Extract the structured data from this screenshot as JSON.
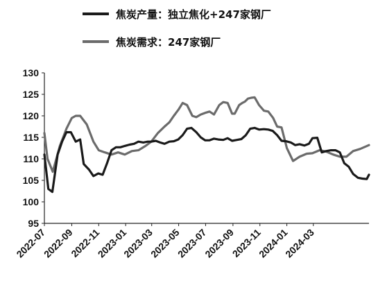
{
  "chart_data": {
    "type": "line",
    "series": [
      {
        "name": "焦炭产量：独立焦化+247家钢厂",
        "color": "#1a1a1a",
        "values": [
          111,
          103,
          102.3,
          111,
          114,
          116.2,
          116.2,
          114,
          114.5,
          108.8,
          107.5,
          106,
          106.6,
          106.3,
          109,
          112,
          112.7,
          112.7,
          113,
          113.3,
          113.5,
          114,
          113.8,
          114,
          114,
          114.2,
          113.8,
          113.5,
          114,
          114.1,
          114.5,
          115.5,
          117,
          117.2,
          116.2,
          115,
          114.3,
          114.3,
          114.7,
          114.5,
          114.4,
          114.8,
          114.2,
          114.4,
          114.6,
          115.5,
          117,
          117.2,
          116.8,
          116.9,
          116.8,
          116.5,
          115.5,
          114.2,
          114.1,
          113.8,
          113.2,
          113.4,
          113.1,
          113.5,
          114.8,
          114.9,
          111.5,
          111.8,
          112,
          112,
          111.5,
          109,
          108.2,
          106.5,
          105.6,
          105.4,
          105.3,
          106.3
        ],
        "x": [
          "2022-07-01",
          "2022-07-10",
          "2022-07-19",
          "2022-07-31",
          "2022-08-10",
          "2022-08-20",
          "2022-08-30",
          "2022-09-10",
          "2022-09-20",
          "2022-09-28",
          "2022-10-10",
          "2022-10-20",
          "2022-10-31",
          "2022-11-10",
          "2022-11-20",
          "2022-11-30",
          "2022-12-10",
          "2022-12-20",
          "2022-12-30",
          "2023-01-10",
          "2023-01-20",
          "2023-01-30",
          "2023-02-10",
          "2023-02-20",
          "2023-02-28",
          "2023-03-10",
          "2023-03-20",
          "2023-03-30",
          "2023-04-10",
          "2023-04-20",
          "2023-04-30",
          "2023-05-10",
          "2023-05-20",
          "2023-05-30",
          "2023-06-10",
          "2023-06-20",
          "2023-06-30",
          "2023-07-10",
          "2023-07-20",
          "2023-07-30",
          "2023-08-10",
          "2023-08-20",
          "2023-08-30",
          "2023-09-10",
          "2023-09-20",
          "2023-09-30",
          "2023-10-10",
          "2023-10-20",
          "2023-10-30",
          "2023-11-10",
          "2023-11-20",
          "2023-11-30",
          "2023-12-10",
          "2023-12-20",
          "2023-12-30",
          "2024-01-10",
          "2024-01-20",
          "2024-01-30",
          "2024-02-10",
          "2024-02-20",
          "2024-02-28",
          "2024-03-10",
          "2024-03-20",
          "2024-03-30",
          "2024-04-10",
          "2024-04-20",
          "2024-04-30",
          "2024-05-10",
          "2024-05-20",
          "2024-05-30",
          "2024-06-10",
          "2024-06-20",
          "2024-06-30",
          "2024-07-05"
        ]
      },
      {
        "name": "焦炭需求：247家钢厂",
        "color": "#6b6b6b",
        "values": [
          116,
          110,
          107,
          113,
          117,
          119.5,
          120,
          120,
          118,
          114,
          112,
          111.5,
          111,
          111.5,
          111,
          111.8,
          112,
          113,
          114,
          116,
          117.5,
          118.5,
          120,
          121.5,
          123,
          122.5,
          120,
          119.7,
          120.3,
          120.7,
          121,
          120.3,
          122.5,
          123.2,
          123,
          120.5,
          120.5,
          122.5,
          123,
          123.3,
          124,
          124.2,
          124.3,
          122.5,
          121.2,
          121,
          119.5,
          117.5,
          117.3,
          112.5,
          109.5,
          110.5,
          111.2,
          111.3,
          112,
          111.7,
          111,
          110.5,
          110.5,
          111.8,
          112.3,
          113.2
        ],
        "x": [
          "2022-07-01",
          "2022-07-08",
          "2022-07-20",
          "2022-08-05",
          "2022-08-20",
          "2022-09-01",
          "2022-09-10",
          "2022-09-20",
          "2022-10-05",
          "2022-10-20",
          "2022-11-01",
          "2022-11-15",
          "2022-11-30",
          "2022-12-15",
          "2022-12-30",
          "2023-01-15",
          "2023-01-30",
          "2023-02-15",
          "2023-02-28",
          "2023-03-15",
          "2023-03-30",
          "2023-04-10",
          "2023-04-20",
          "2023-05-01",
          "2023-05-10",
          "2023-05-20",
          "2023-06-01",
          "2023-06-10",
          "2023-06-20",
          "2023-06-30",
          "2023-07-10",
          "2023-07-20",
          "2023-08-01",
          "2023-08-10",
          "2023-08-20",
          "2023-08-30",
          "2023-09-05",
          "2023-09-15",
          "2023-09-22",
          "2023-09-28",
          "2023-10-05",
          "2023-10-12",
          "2023-10-20",
          "2023-10-30",
          "2023-11-10",
          "2023-11-20",
          "2023-12-01",
          "2023-12-10",
          "2023-12-20",
          "2024-01-01",
          "2024-01-15",
          "2024-01-30",
          "2024-02-15",
          "2024-02-28",
          "2024-03-15",
          "2024-03-30",
          "2024-04-15",
          "2024-04-30",
          "2024-05-15",
          "2024-05-30",
          "2024-06-15",
          "2024-07-05"
        ]
      }
    ],
    "ylim": [
      95,
      130
    ],
    "yticks": [
      "95",
      "100",
      "105",
      "110",
      "115",
      "120",
      "125",
      "130"
    ],
    "xlim": [
      "2022-07-01",
      "2024-07-05"
    ],
    "xticks": [
      {
        "label": "2022-07",
        "date": "2022-07-01"
      },
      {
        "label": "2022-09",
        "date": "2022-09-01"
      },
      {
        "label": "2022-11",
        "date": "2022-11-01"
      },
      {
        "label": "2023-01",
        "date": "2023-01-01"
      },
      {
        "label": "2023-03",
        "date": "2023-03-01"
      },
      {
        "label": "2023-05",
        "date": "2023-05-01"
      },
      {
        "label": "2023-07",
        "date": "2023-07-01"
      },
      {
        "label": "2023-09",
        "date": "2023-09-01"
      },
      {
        "label": "2023-11",
        "date": "2023-11-01"
      },
      {
        "label": "2024-01",
        "date": "2024-01-01"
      },
      {
        "label": "2024-03",
        "date": "2024-03-01"
      }
    ],
    "grid": false,
    "legend_position": "top-left"
  }
}
